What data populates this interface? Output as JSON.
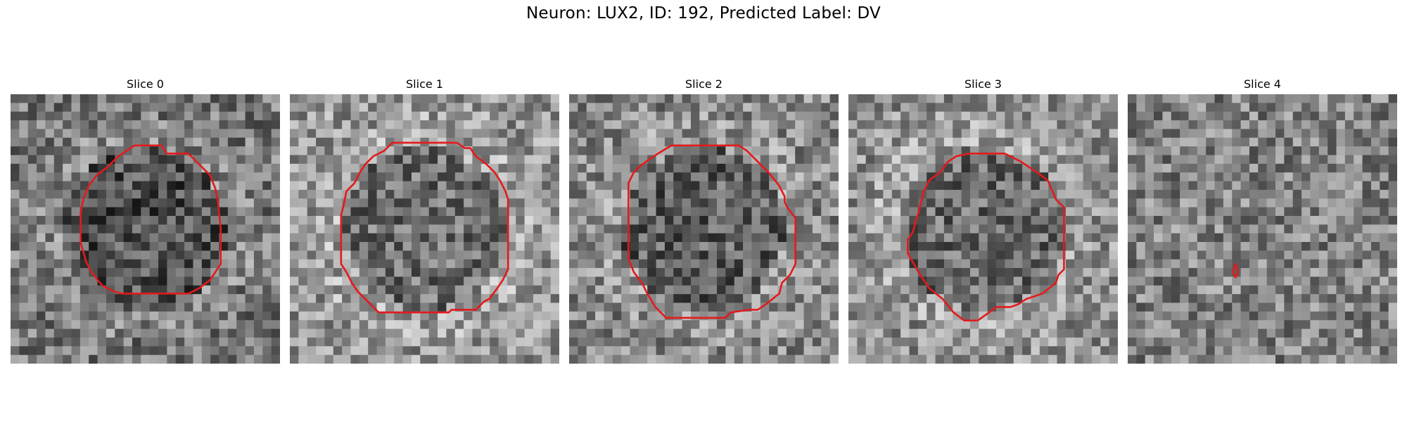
{
  "figure": {
    "suptitle": "Neuron: LUX2, ID: 192, Predicted Label: DV"
  },
  "panels": [
    {
      "title": "Slice 0",
      "seed": 11,
      "base": 120,
      "ring_light": true,
      "contour": [
        [
          0.46,
          0.19
        ],
        [
          0.56,
          0.19
        ],
        [
          0.58,
          0.22
        ],
        [
          0.66,
          0.22
        ],
        [
          0.74,
          0.3
        ],
        [
          0.76,
          0.35
        ],
        [
          0.77,
          0.4
        ],
        [
          0.78,
          0.5
        ],
        [
          0.78,
          0.63
        ],
        [
          0.76,
          0.66
        ],
        [
          0.74,
          0.69
        ],
        [
          0.7,
          0.72
        ],
        [
          0.66,
          0.74
        ],
        [
          0.63,
          0.74
        ],
        [
          0.62,
          0.74
        ],
        [
          0.54,
          0.74
        ],
        [
          0.53,
          0.74
        ],
        [
          0.42,
          0.74
        ],
        [
          0.41,
          0.74
        ],
        [
          0.38,
          0.73
        ],
        [
          0.34,
          0.71
        ],
        [
          0.3,
          0.66
        ],
        [
          0.28,
          0.62
        ],
        [
          0.26,
          0.55
        ],
        [
          0.26,
          0.44
        ],
        [
          0.27,
          0.39
        ],
        [
          0.29,
          0.34
        ],
        [
          0.32,
          0.3
        ],
        [
          0.36,
          0.27
        ],
        [
          0.4,
          0.23
        ]
      ]
    },
    {
      "title": "Slice 1",
      "seed": 23,
      "base": 150,
      "ring_light": true,
      "contour": [
        [
          0.38,
          0.18
        ],
        [
          0.62,
          0.18
        ],
        [
          0.65,
          0.2
        ],
        [
          0.67,
          0.2
        ],
        [
          0.69,
          0.23
        ],
        [
          0.73,
          0.26
        ],
        [
          0.76,
          0.29
        ],
        [
          0.78,
          0.32
        ],
        [
          0.8,
          0.36
        ],
        [
          0.81,
          0.39
        ],
        [
          0.81,
          0.65
        ],
        [
          0.79,
          0.69
        ],
        [
          0.77,
          0.72
        ],
        [
          0.74,
          0.76
        ],
        [
          0.72,
          0.77
        ],
        [
          0.69,
          0.8
        ],
        [
          0.6,
          0.8
        ],
        [
          0.59,
          0.81
        ],
        [
          0.33,
          0.81
        ],
        [
          0.31,
          0.79
        ],
        [
          0.28,
          0.76
        ],
        [
          0.25,
          0.73
        ],
        [
          0.23,
          0.7
        ],
        [
          0.21,
          0.66
        ],
        [
          0.19,
          0.63
        ],
        [
          0.19,
          0.45
        ],
        [
          0.2,
          0.41
        ],
        [
          0.21,
          0.36
        ],
        [
          0.24,
          0.33
        ],
        [
          0.26,
          0.29
        ],
        [
          0.28,
          0.26
        ],
        [
          0.31,
          0.23
        ],
        [
          0.35,
          0.21
        ]
      ]
    },
    {
      "title": "Slice 2",
      "seed": 37,
      "base": 135,
      "ring_light": true,
      "contour": [
        [
          0.38,
          0.19
        ],
        [
          0.63,
          0.19
        ],
        [
          0.66,
          0.21
        ],
        [
          0.7,
          0.25
        ],
        [
          0.74,
          0.29
        ],
        [
          0.78,
          0.34
        ],
        [
          0.8,
          0.38
        ],
        [
          0.8,
          0.4
        ],
        [
          0.81,
          0.42
        ],
        [
          0.84,
          0.46
        ],
        [
          0.84,
          0.49
        ],
        [
          0.84,
          0.6
        ],
        [
          0.84,
          0.63
        ],
        [
          0.82,
          0.67
        ],
        [
          0.79,
          0.7
        ],
        [
          0.78,
          0.74
        ],
        [
          0.73,
          0.78
        ],
        [
          0.7,
          0.8
        ],
        [
          0.67,
          0.8
        ],
        [
          0.6,
          0.81
        ],
        [
          0.58,
          0.83
        ],
        [
          0.36,
          0.83
        ],
        [
          0.34,
          0.81
        ],
        [
          0.32,
          0.79
        ],
        [
          0.29,
          0.74
        ],
        [
          0.27,
          0.7
        ],
        [
          0.24,
          0.66
        ],
        [
          0.22,
          0.61
        ],
        [
          0.22,
          0.33
        ],
        [
          0.24,
          0.29
        ],
        [
          0.26,
          0.27
        ],
        [
          0.3,
          0.24
        ],
        [
          0.33,
          0.22
        ]
      ]
    },
    {
      "title": "Slice 3",
      "seed": 53,
      "base": 145,
      "ring_light": true,
      "contour": [
        [
          0.45,
          0.22
        ],
        [
          0.58,
          0.22
        ],
        [
          0.6,
          0.23
        ],
        [
          0.64,
          0.25
        ],
        [
          0.67,
          0.27
        ],
        [
          0.7,
          0.29
        ],
        [
          0.74,
          0.32
        ],
        [
          0.77,
          0.39
        ],
        [
          0.8,
          0.42
        ],
        [
          0.8,
          0.47
        ],
        [
          0.8,
          0.65
        ],
        [
          0.78,
          0.67
        ],
        [
          0.77,
          0.7
        ],
        [
          0.72,
          0.74
        ],
        [
          0.69,
          0.75
        ],
        [
          0.66,
          0.76
        ],
        [
          0.63,
          0.78
        ],
        [
          0.6,
          0.79
        ],
        [
          0.55,
          0.79
        ],
        [
          0.48,
          0.84
        ],
        [
          0.43,
          0.84
        ],
        [
          0.39,
          0.81
        ],
        [
          0.35,
          0.76
        ],
        [
          0.3,
          0.72
        ],
        [
          0.26,
          0.66
        ],
        [
          0.22,
          0.59
        ],
        [
          0.22,
          0.54
        ],
        [
          0.24,
          0.51
        ],
        [
          0.25,
          0.47
        ],
        [
          0.26,
          0.44
        ],
        [
          0.27,
          0.4
        ],
        [
          0.28,
          0.36
        ],
        [
          0.3,
          0.32
        ],
        [
          0.34,
          0.29
        ],
        [
          0.37,
          0.25
        ],
        [
          0.4,
          0.23
        ]
      ]
    },
    {
      "title": "Slice 4",
      "seed": 71,
      "base": 130,
      "ring_light": false,
      "contour": [
        [
          0.4,
          0.63
        ],
        [
          0.41,
          0.66
        ],
        [
          0.4,
          0.68
        ],
        [
          0.39,
          0.66
        ]
      ]
    }
  ]
}
